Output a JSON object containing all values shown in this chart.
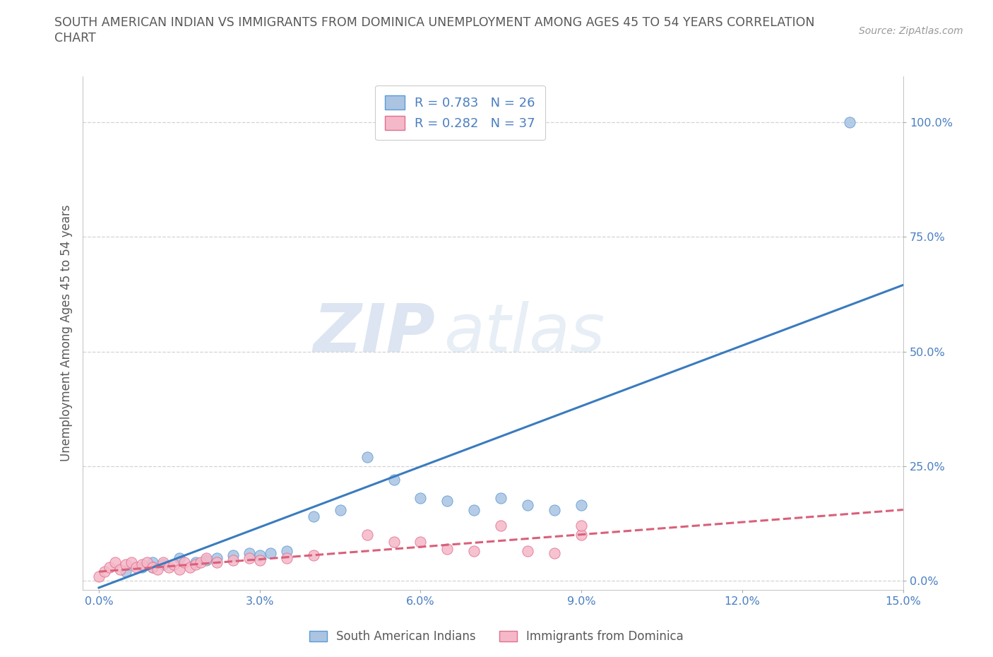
{
  "title_line1": "SOUTH AMERICAN INDIAN VS IMMIGRANTS FROM DOMINICA UNEMPLOYMENT AMONG AGES 45 TO 54 YEARS CORRELATION",
  "title_line2": "CHART",
  "source": "Source: ZipAtlas.com",
  "ylabel": "Unemployment Among Ages 45 to 54 years",
  "xlim": [
    -0.003,
    0.15
  ],
  "ylim": [
    -0.02,
    1.1
  ],
  "xticks": [
    0.0,
    0.03,
    0.06,
    0.09,
    0.12,
    0.15
  ],
  "xticklabels": [
    "0.0%",
    "3.0%",
    "6.0%",
    "9.0%",
    "12.0%",
    "15.0%"
  ],
  "yticks": [
    0.0,
    0.25,
    0.5,
    0.75,
    1.0
  ],
  "yticklabels": [
    "0.0%",
    "25.0%",
    "50.0%",
    "75.0%",
    "100.0%"
  ],
  "blue_R": 0.783,
  "blue_N": 26,
  "pink_R": 0.282,
  "pink_N": 37,
  "blue_color": "#aac4e2",
  "blue_edge_color": "#5b9bd5",
  "blue_line_color": "#3a7bbf",
  "pink_color": "#f5b8c8",
  "pink_edge_color": "#e07090",
  "pink_line_color": "#d9607a",
  "legend_label_blue": "South American Indians",
  "legend_label_pink": "Immigrants from Dominica",
  "blue_line_x0": 0.0,
  "blue_line_y0": -0.015,
  "blue_line_x1": 0.15,
  "blue_line_y1": 0.645,
  "pink_line_x0": 0.0,
  "pink_line_y0": 0.02,
  "pink_line_x1": 0.15,
  "pink_line_y1": 0.155,
  "blue_scatter_x": [
    0.005,
    0.008,
    0.01,
    0.012,
    0.015,
    0.018,
    0.02,
    0.022,
    0.025,
    0.028,
    0.03,
    0.032,
    0.035,
    0.04,
    0.045,
    0.05,
    0.055,
    0.06,
    0.065,
    0.07,
    0.075,
    0.08,
    0.085,
    0.09,
    0.01,
    0.14
  ],
  "blue_scatter_y": [
    0.02,
    0.03,
    0.04,
    0.035,
    0.05,
    0.04,
    0.045,
    0.05,
    0.055,
    0.06,
    0.055,
    0.06,
    0.065,
    0.14,
    0.155,
    0.27,
    0.22,
    0.18,
    0.175,
    0.155,
    0.18,
    0.165,
    0.155,
    0.165,
    0.03,
    1.0
  ],
  "pink_scatter_x": [
    0.0,
    0.001,
    0.002,
    0.003,
    0.004,
    0.005,
    0.006,
    0.007,
    0.008,
    0.009,
    0.01,
    0.011,
    0.012,
    0.013,
    0.014,
    0.015,
    0.016,
    0.017,
    0.018,
    0.019,
    0.02,
    0.022,
    0.025,
    0.028,
    0.03,
    0.035,
    0.04,
    0.05,
    0.055,
    0.06,
    0.065,
    0.07,
    0.075,
    0.08,
    0.085,
    0.09,
    0.09
  ],
  "pink_scatter_y": [
    0.01,
    0.02,
    0.03,
    0.04,
    0.025,
    0.035,
    0.04,
    0.03,
    0.035,
    0.04,
    0.03,
    0.025,
    0.04,
    0.03,
    0.035,
    0.025,
    0.04,
    0.03,
    0.035,
    0.04,
    0.05,
    0.04,
    0.045,
    0.05,
    0.045,
    0.05,
    0.055,
    0.1,
    0.085,
    0.085,
    0.07,
    0.065,
    0.12,
    0.065,
    0.06,
    0.1,
    0.12
  ],
  "watermark_zip": "ZIP",
  "watermark_atlas": "atlas",
  "background_color": "#ffffff",
  "grid_color": "#c8c8c8",
  "title_color": "#595959",
  "axis_color": "#595959",
  "tick_color": "#4a7fc1",
  "legend_text_color": "#4a7fc1"
}
